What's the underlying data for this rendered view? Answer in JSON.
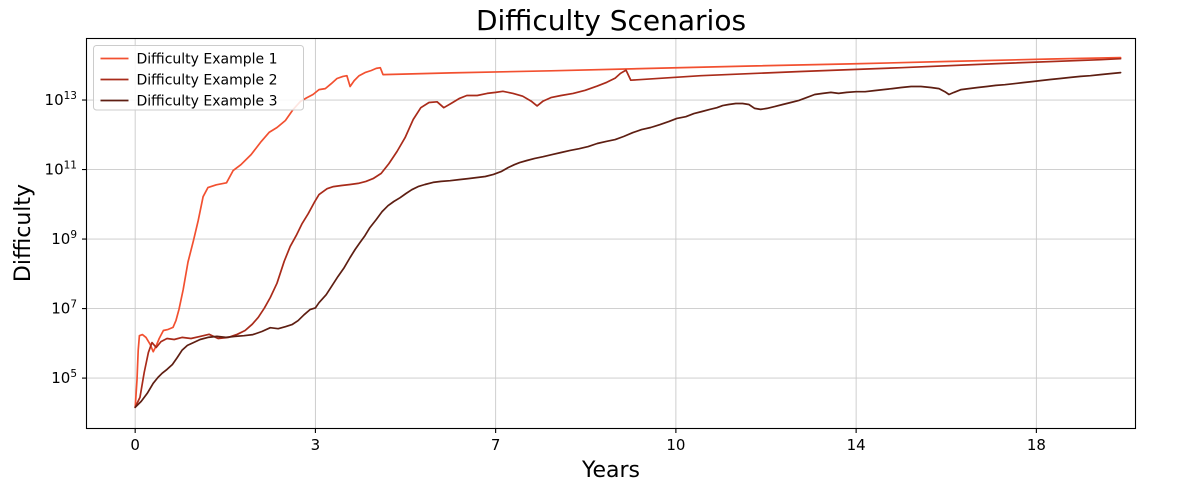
{
  "chart_data": {
    "type": "line",
    "title": "Difficulty Scenarios",
    "xlabel": "Years",
    "ylabel": "Difficulty",
    "y_scale": "log10",
    "grid": true,
    "legend": {
      "position": "upper left"
    },
    "x_ticks": {
      "labels": [
        "0",
        "3",
        "7",
        "10",
        "14",
        "18"
      ],
      "years": [
        0,
        3,
        7,
        10,
        14,
        18
      ],
      "note": "ticks evenly spaced on axis; year spacing nonlinear"
    },
    "y_ticks_exponents": [
      5,
      7,
      9,
      11,
      13
    ],
    "x_range_units": [
      -0.27,
      5.55
    ],
    "y_range_log10": [
      3.55,
      14.77
    ],
    "points_format": "[years_elapsed, log10_of_difficulty]",
    "series": [
      {
        "name": "Difficulty Example 1",
        "color": "#f25030",
        "points": [
          [
            0,
            4.16
          ],
          [
            0.03,
            4.95
          ],
          [
            0.05,
            5.8
          ],
          [
            0.07,
            6.22
          ],
          [
            0.12,
            6.25
          ],
          [
            0.18,
            6.17
          ],
          [
            0.25,
            5.97
          ],
          [
            0.3,
            5.76
          ],
          [
            0.35,
            5.93
          ],
          [
            0.4,
            6.14
          ],
          [
            0.47,
            6.37
          ],
          [
            0.55,
            6.4
          ],
          [
            0.63,
            6.46
          ],
          [
            0.68,
            6.66
          ],
          [
            0.73,
            6.98
          ],
          [
            0.8,
            7.55
          ],
          [
            0.88,
            8.34
          ],
          [
            0.97,
            8.95
          ],
          [
            1.05,
            9.53
          ],
          [
            1.13,
            10.22
          ],
          [
            1.21,
            10.48
          ],
          [
            1.35,
            10.56
          ],
          [
            1.52,
            10.62
          ],
          [
            1.63,
            10.97
          ],
          [
            1.76,
            11.14
          ],
          [
            1.93,
            11.43
          ],
          [
            2.1,
            11.81
          ],
          [
            2.23,
            12.07
          ],
          [
            2.36,
            12.21
          ],
          [
            2.5,
            12.41
          ],
          [
            2.63,
            12.73
          ],
          [
            2.75,
            12.96
          ],
          [
            2.86,
            13.07
          ],
          [
            2.96,
            13.16
          ],
          [
            3.08,
            13.3
          ],
          [
            3.22,
            13.33
          ],
          [
            3.35,
            13.47
          ],
          [
            3.48,
            13.62
          ],
          [
            3.61,
            13.68
          ],
          [
            3.7,
            13.7
          ],
          [
            3.77,
            13.39
          ],
          [
            3.86,
            13.56
          ],
          [
            3.97,
            13.7
          ],
          [
            4.1,
            13.79
          ],
          [
            4.24,
            13.85
          ],
          [
            4.35,
            13.91
          ],
          [
            4.44,
            13.93
          ],
          [
            4.5,
            13.73
          ],
          [
            6.01,
            13.78
          ],
          [
            7.92,
            13.84
          ],
          [
            9.58,
            13.91
          ],
          [
            11.67,
            13.98
          ],
          [
            13.88,
            14.04
          ],
          [
            16.1,
            14.11
          ],
          [
            18.32,
            14.18
          ],
          [
            19.87,
            14.22
          ]
        ]
      },
      {
        "name": "Difficulty Example 2",
        "color": "#a92b1a",
        "points": [
          [
            0,
            4.16
          ],
          [
            0.08,
            4.45
          ],
          [
            0.15,
            5.16
          ],
          [
            0.22,
            5.74
          ],
          [
            0.28,
            6.02
          ],
          [
            0.35,
            5.88
          ],
          [
            0.43,
            6.05
          ],
          [
            0.53,
            6.14
          ],
          [
            0.65,
            6.11
          ],
          [
            0.78,
            6.17
          ],
          [
            0.93,
            6.14
          ],
          [
            1.08,
            6.2
          ],
          [
            1.23,
            6.26
          ],
          [
            1.38,
            6.14
          ],
          [
            1.55,
            6.17
          ],
          [
            1.7,
            6.26
          ],
          [
            1.83,
            6.37
          ],
          [
            1.95,
            6.55
          ],
          [
            2.05,
            6.75
          ],
          [
            2.15,
            7.01
          ],
          [
            2.25,
            7.32
          ],
          [
            2.36,
            7.73
          ],
          [
            2.48,
            8.36
          ],
          [
            2.58,
            8.79
          ],
          [
            2.68,
            9.1
          ],
          [
            2.78,
            9.45
          ],
          [
            2.88,
            9.73
          ],
          [
            2.98,
            10.05
          ],
          [
            3.08,
            10.28
          ],
          [
            3.26,
            10.45
          ],
          [
            3.4,
            10.51
          ],
          [
            3.58,
            10.54
          ],
          [
            3.77,
            10.57
          ],
          [
            3.95,
            10.6
          ],
          [
            4.12,
            10.66
          ],
          [
            4.28,
            10.74
          ],
          [
            4.46,
            10.89
          ],
          [
            4.63,
            11.17
          ],
          [
            4.81,
            11.52
          ],
          [
            4.99,
            11.92
          ],
          [
            5.17,
            12.44
          ],
          [
            5.34,
            12.78
          ],
          [
            5.52,
            12.93
          ],
          [
            5.7,
            12.95
          ],
          [
            5.85,
            12.78
          ],
          [
            6.01,
            12.9
          ],
          [
            6.19,
            13.04
          ],
          [
            6.36,
            13.13
          ],
          [
            6.59,
            13.13
          ],
          [
            6.81,
            13.19
          ],
          [
            7,
            13.22
          ],
          [
            7.12,
            13.25
          ],
          [
            7.29,
            13.19
          ],
          [
            7.45,
            13.11
          ],
          [
            7.59,
            12.97
          ],
          [
            7.69,
            12.83
          ],
          [
            7.79,
            12.97
          ],
          [
            7.92,
            13.07
          ],
          [
            8.09,
            13.13
          ],
          [
            8.29,
            13.19
          ],
          [
            8.49,
            13.28
          ],
          [
            8.69,
            13.4
          ],
          [
            8.85,
            13.51
          ],
          [
            8.99,
            13.63
          ],
          [
            9.08,
            13.77
          ],
          [
            9.17,
            13.86
          ],
          [
            9.25,
            13.57
          ],
          [
            10.55,
            13.7
          ],
          [
            12.77,
            13.82
          ],
          [
            15,
            13.93
          ],
          [
            17.2,
            14.05
          ],
          [
            19.43,
            14.16
          ],
          [
            19.87,
            14.19
          ]
        ]
      },
      {
        "name": "Difficulty Example 3",
        "color": "#5e1e12",
        "points": [
          [
            0,
            4.16
          ],
          [
            0.1,
            4.33
          ],
          [
            0.2,
            4.56
          ],
          [
            0.3,
            4.85
          ],
          [
            0.38,
            5.02
          ],
          [
            0.45,
            5.14
          ],
          [
            0.53,
            5.25
          ],
          [
            0.62,
            5.39
          ],
          [
            0.7,
            5.59
          ],
          [
            0.78,
            5.8
          ],
          [
            0.87,
            5.94
          ],
          [
            0.97,
            6.02
          ],
          [
            1.08,
            6.11
          ],
          [
            1.21,
            6.17
          ],
          [
            1.36,
            6.2
          ],
          [
            1.51,
            6.17
          ],
          [
            1.66,
            6.2
          ],
          [
            1.81,
            6.22
          ],
          [
            1.96,
            6.25
          ],
          [
            2.11,
            6.34
          ],
          [
            2.25,
            6.45
          ],
          [
            2.38,
            6.42
          ],
          [
            2.5,
            6.48
          ],
          [
            2.61,
            6.54
          ],
          [
            2.71,
            6.65
          ],
          [
            2.81,
            6.82
          ],
          [
            2.91,
            6.97
          ],
          [
            3,
            7.02
          ],
          [
            3.08,
            7.17
          ],
          [
            3.24,
            7.4
          ],
          [
            3.37,
            7.66
          ],
          [
            3.5,
            7.92
          ],
          [
            3.64,
            8.18
          ],
          [
            3.77,
            8.47
          ],
          [
            3.88,
            8.7
          ],
          [
            3.99,
            8.9
          ],
          [
            4.1,
            9.1
          ],
          [
            4.21,
            9.33
          ],
          [
            4.35,
            9.56
          ],
          [
            4.48,
            9.79
          ],
          [
            4.61,
            9.96
          ],
          [
            4.74,
            10.08
          ],
          [
            4.88,
            10.19
          ],
          [
            5.01,
            10.31
          ],
          [
            5.14,
            10.42
          ],
          [
            5.28,
            10.51
          ],
          [
            5.43,
            10.57
          ],
          [
            5.61,
            10.63
          ],
          [
            5.79,
            10.66
          ],
          [
            5.99,
            10.68
          ],
          [
            6.19,
            10.71
          ],
          [
            6.39,
            10.74
          ],
          [
            6.59,
            10.77
          ],
          [
            6.77,
            10.8
          ],
          [
            6.95,
            10.86
          ],
          [
            7.09,
            10.94
          ],
          [
            7.21,
            11.06
          ],
          [
            7.31,
            11.14
          ],
          [
            7.4,
            11.2
          ],
          [
            7.52,
            11.26
          ],
          [
            7.65,
            11.32
          ],
          [
            7.79,
            11.37
          ],
          [
            7.94,
            11.43
          ],
          [
            8.09,
            11.49
          ],
          [
            8.24,
            11.55
          ],
          [
            8.39,
            11.6
          ],
          [
            8.54,
            11.66
          ],
          [
            8.69,
            11.75
          ],
          [
            8.84,
            11.81
          ],
          [
            8.99,
            11.86
          ],
          [
            9.13,
            11.95
          ],
          [
            9.28,
            12.06
          ],
          [
            9.43,
            12.15
          ],
          [
            9.58,
            12.21
          ],
          [
            9.73,
            12.29
          ],
          [
            9.88,
            12.38
          ],
          [
            10.02,
            12.47
          ],
          [
            10.22,
            12.52
          ],
          [
            10.4,
            12.61
          ],
          [
            10.58,
            12.67
          ],
          [
            10.75,
            12.73
          ],
          [
            10.91,
            12.78
          ],
          [
            11.04,
            12.84
          ],
          [
            11.17,
            12.87
          ],
          [
            11.33,
            12.9
          ],
          [
            11.48,
            12.9
          ],
          [
            11.62,
            12.87
          ],
          [
            11.75,
            12.76
          ],
          [
            11.88,
            12.73
          ],
          [
            12.02,
            12.76
          ],
          [
            12.19,
            12.81
          ],
          [
            12.37,
            12.87
          ],
          [
            12.55,
            12.93
          ],
          [
            12.73,
            12.99
          ],
          [
            12.9,
            13.07
          ],
          [
            13.08,
            13.16
          ],
          [
            13.26,
            13.19
          ],
          [
            13.44,
            13.22
          ],
          [
            13.61,
            13.19
          ],
          [
            13.79,
            13.22
          ],
          [
            14,
            13.24
          ],
          [
            14.2,
            13.24
          ],
          [
            14.4,
            13.27
          ],
          [
            14.6,
            13.3
          ],
          [
            14.8,
            13.33
          ],
          [
            15,
            13.36
          ],
          [
            15.22,
            13.39
          ],
          [
            15.44,
            13.39
          ],
          [
            15.66,
            13.36
          ],
          [
            15.84,
            13.33
          ],
          [
            15.97,
            13.24
          ],
          [
            16.06,
            13.16
          ],
          [
            16.17,
            13.22
          ],
          [
            16.33,
            13.3
          ],
          [
            16.5,
            13.33
          ],
          [
            16.7,
            13.36
          ],
          [
            16.9,
            13.39
          ],
          [
            17.1,
            13.42
          ],
          [
            17.3,
            13.44
          ],
          [
            17.5,
            13.47
          ],
          [
            17.7,
            13.5
          ],
          [
            17.9,
            13.53
          ],
          [
            18.09,
            13.56
          ],
          [
            18.31,
            13.59
          ],
          [
            18.53,
            13.62
          ],
          [
            18.76,
            13.65
          ],
          [
            18.98,
            13.68
          ],
          [
            19.2,
            13.7
          ],
          [
            19.42,
            13.73
          ],
          [
            19.64,
            13.76
          ],
          [
            19.87,
            13.79
          ]
        ]
      }
    ]
  }
}
